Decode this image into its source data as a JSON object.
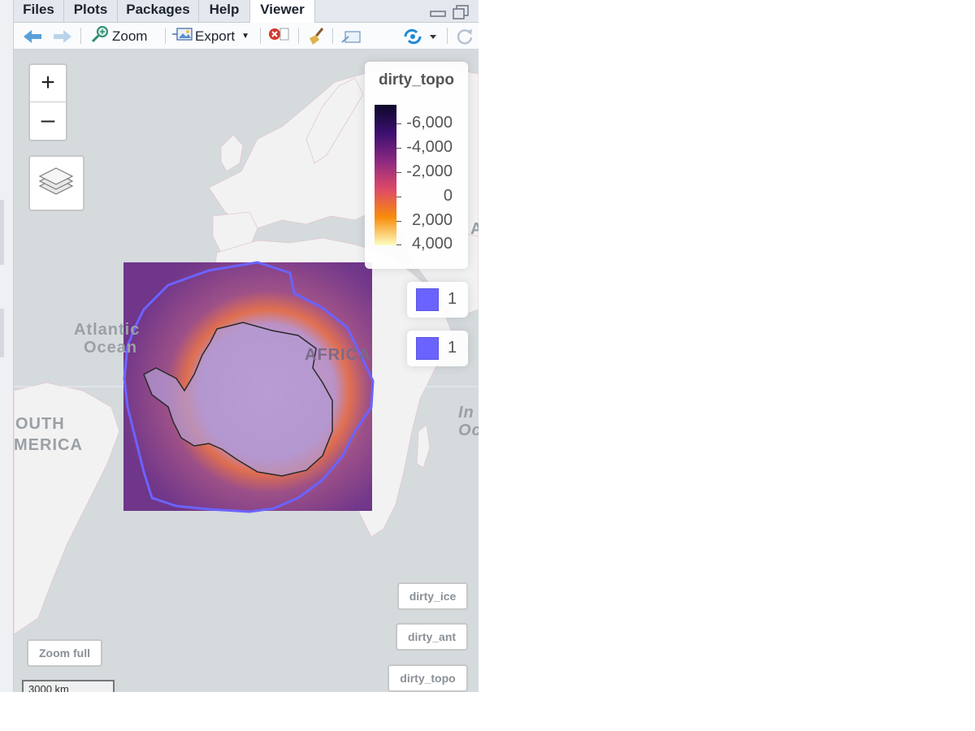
{
  "tabs": {
    "files": "Files",
    "plots": "Plots",
    "packages": "Packages",
    "help": "Help",
    "viewer": "Viewer"
  },
  "toolbar": {
    "zoom_label": "Zoom",
    "export_label": "Export"
  },
  "map": {
    "zoom_in": "+",
    "zoom_out": "–",
    "labels": {
      "atlantic_line1": "Atlantic",
      "atlantic_line2": "Ocean",
      "africa": "AFRICA",
      "south_line1": "OUTH",
      "south_line2": "MERICA",
      "indian_line1": "In",
      "indian_line2": "Oc",
      "asia_fragment": "A"
    },
    "legend": {
      "title": "dirty_topo",
      "ticks": [
        "-6,000",
        "-4,000",
        "-2,000",
        "0",
        "2,000",
        "4,000"
      ],
      "gradient_colors": [
        "#0d0829",
        "#3b0f70",
        "#8c2981",
        "#de4968",
        "#f98c0a",
        "#fcfdbf"
      ],
      "poly_legend_1": "1",
      "poly_legend_2": "1",
      "poly_color": "#6b63ff"
    },
    "buttons": {
      "dirty_ice": "dirty_ice",
      "dirty_ant": "dirty_ant",
      "dirty_topo": "dirty_topo",
      "zoom_full": "Zoom full"
    },
    "scale_label": "3000 km"
  }
}
